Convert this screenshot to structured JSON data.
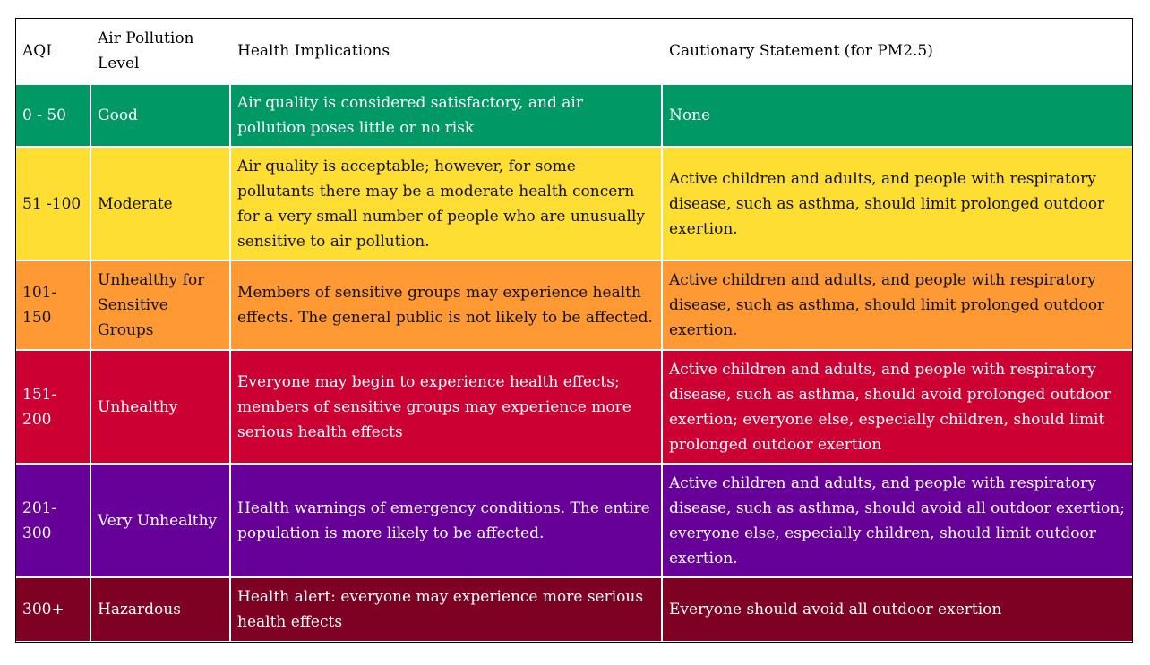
{
  "table": {
    "headers": [
      "AQI",
      "Air Pollution Level",
      "Health Implications",
      "Cautionary Statement (for PM2.5)"
    ],
    "rows": [
      {
        "aqi": "0 - 50",
        "level": "Good",
        "health": "Air quality is considered satisfactory, and air pollution poses little or no risk",
        "caution": "None",
        "bg": "#009966",
        "fg": "#ffffff"
      },
      {
        "aqi": "51 -100",
        "level": "Moderate",
        "health": "Air quality is acceptable; however, for some pollutants there may be a moderate health concern for a very small number of people who are unusually sensitive to air pollution.",
        "caution": "Active children and adults, and people with respiratory disease, such as asthma, should limit prolonged outdoor exertion.",
        "bg": "#ffde33",
        "fg": "#111111"
      },
      {
        "aqi": "101-150",
        "level": "Unhealthy for Sensitive Groups",
        "health": "Members of sensitive groups may experience health effects. The general public is not likely to be affected.",
        "caution": "Active children and adults, and people with respiratory disease, such as asthma, should limit prolonged outdoor exertion.",
        "bg": "#ff9933",
        "fg": "#111111"
      },
      {
        "aqi": "151-200",
        "level": "Unhealthy",
        "health": "Everyone may begin to experience health effects; members of sensitive groups may experience more serious health effects",
        "caution": "Active children and adults, and people with respiratory disease, such as asthma, should avoid prolonged outdoor exertion; everyone else, especially children, should limit prolonged outdoor exertion",
        "bg": "#cc0033",
        "fg": "#ffffff"
      },
      {
        "aqi": "201-300",
        "level": "Very Unhealthy",
        "health": "Health warnings of emergency conditions. The entire population is more likely to be affected.",
        "caution": "Active children and adults, and people with respiratory disease, such as asthma, should avoid all outdoor exertion; everyone else, especially children, should limit outdoor exertion.",
        "bg": "#660099",
        "fg": "#ffffff"
      },
      {
        "aqi": "300+",
        "level": "Hazardous",
        "health": "Health alert: everyone may experience more serious health effects",
        "caution": "Everyone should avoid all outdoor exertion",
        "bg": "#7e0023",
        "fg": "#ffffff"
      }
    ]
  }
}
